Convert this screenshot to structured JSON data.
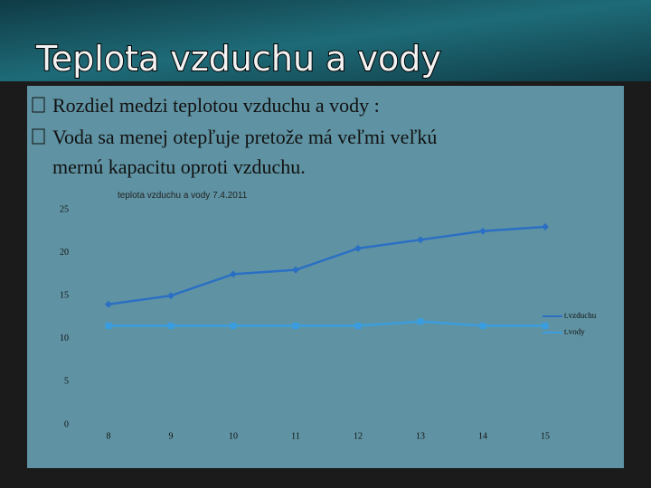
{
  "slide": {
    "title": "Teplota vzduchu a vody",
    "bullets": [
      "Rozdiel medzi teplotou vzduchu a vody :",
      "Voda sa menej otepľuje  pretože má  veľmi veľkú",
      "mernú kapacitu oproti vzduchu."
    ]
  },
  "chart_data": {
    "type": "line",
    "title": "teplota vzduchu a vody   7.4.2011",
    "categories": [
      "8",
      "9",
      "10",
      "11",
      "12",
      "13",
      "14",
      "15"
    ],
    "series": [
      {
        "name": "t.vzduchu",
        "color": "#2a6fc4",
        "values": [
          14,
          15,
          17.5,
          18,
          20.5,
          21.5,
          22.5,
          23
        ]
      },
      {
        "name": "t.vody",
        "color": "#3a9de0",
        "values": [
          11.5,
          11.5,
          11.5,
          11.5,
          11.5,
          12,
          11.5,
          11.5
        ]
      }
    ],
    "ylim": [
      0,
      25
    ],
    "yticks": [
      0,
      5,
      10,
      15,
      20,
      25
    ],
    "grid": false,
    "legend": "right"
  }
}
